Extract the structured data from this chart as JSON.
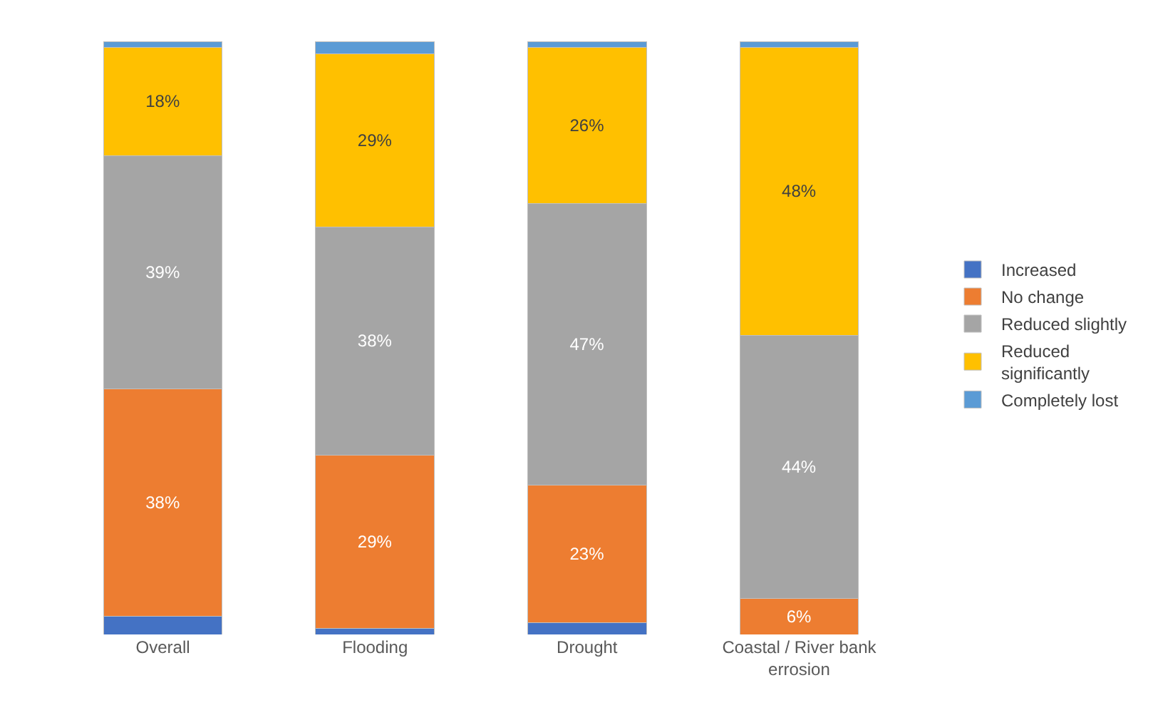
{
  "chart_data": {
    "type": "bar",
    "stacked": true,
    "legend": "right",
    "categories": [
      "Overall",
      "Flooding",
      "Drought",
      "Coastal / River bank errosion"
    ],
    "series": [
      {
        "name": "Increased",
        "color": "#4472c4",
        "values": [
          3,
          1,
          2,
          0
        ],
        "value_labels": [
          null,
          null,
          null,
          null
        ]
      },
      {
        "name": "No change",
        "color": "#ed7d31",
        "values": [
          38,
          29,
          23,
          6
        ],
        "value_labels": [
          "38%",
          "29%",
          "23%",
          "6%"
        ]
      },
      {
        "name": "Reduced slightly",
        "color": "#a5a5a5",
        "values": [
          39,
          38,
          47,
          44
        ],
        "value_labels": [
          "39%",
          "38%",
          "47%",
          "44%"
        ]
      },
      {
        "name": "Reduced significantly",
        "color": "#ffc000",
        "values": [
          18,
          29,
          26,
          48
        ],
        "value_labels": [
          "18%",
          "29%",
          "26%",
          "48%"
        ]
      },
      {
        "name": "Completely lost",
        "color": "#5b9bd5",
        "values": [
          1,
          2,
          1,
          1
        ],
        "value_labels": [
          null,
          null,
          null,
          null
        ]
      }
    ]
  }
}
